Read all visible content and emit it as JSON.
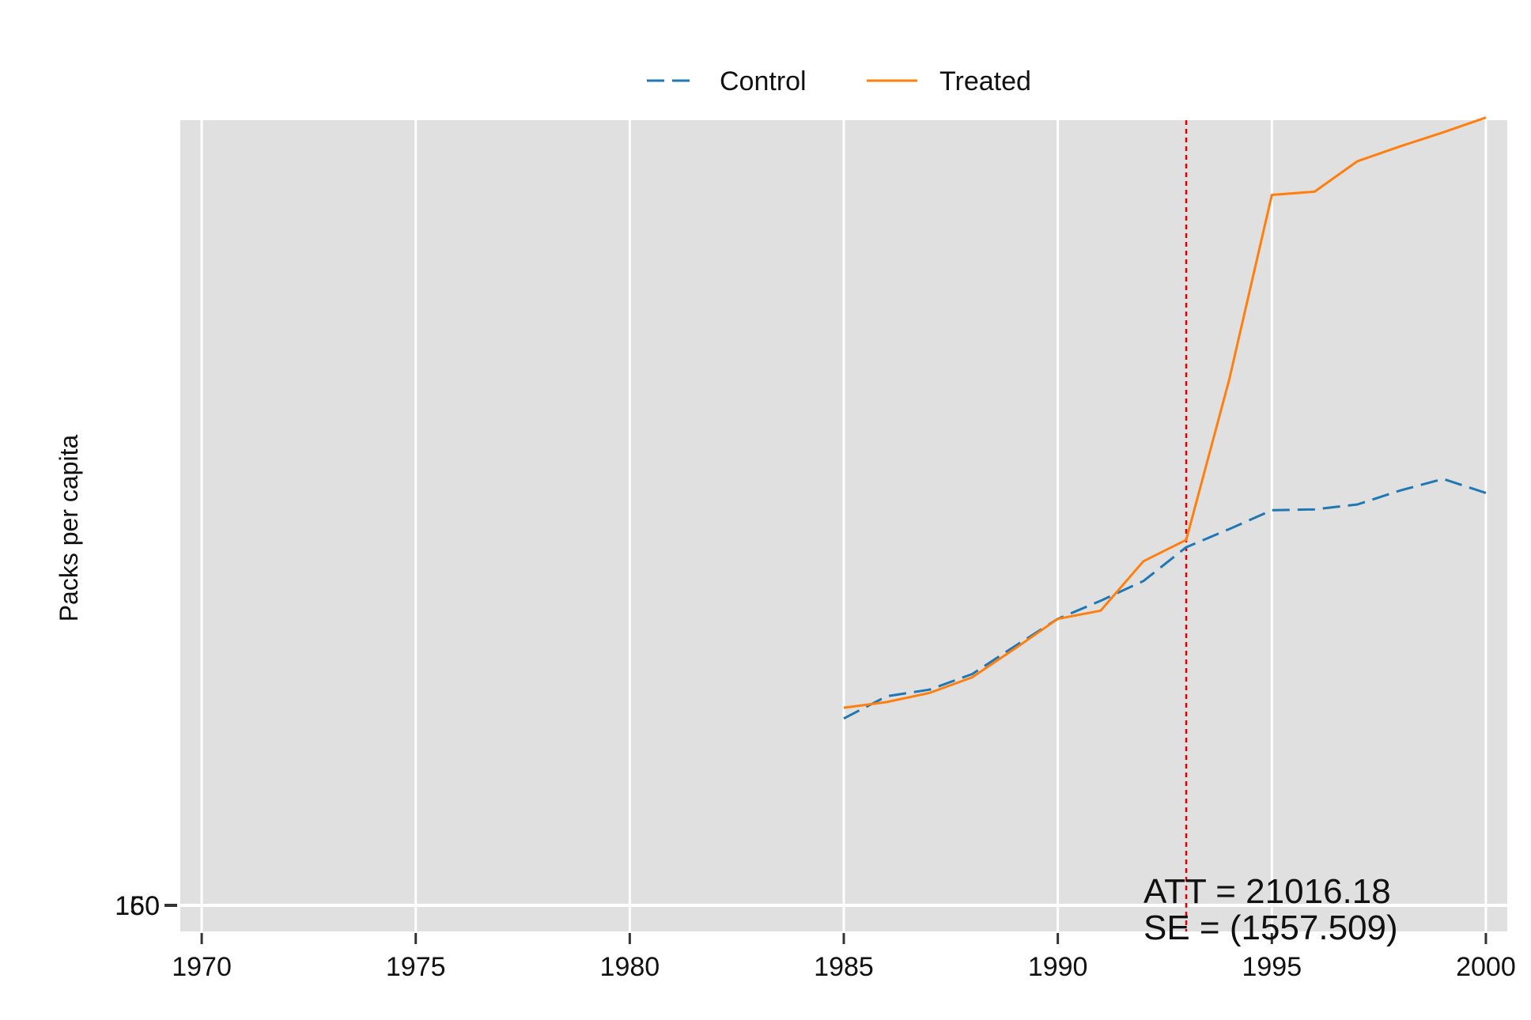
{
  "chart_data": {
    "type": "line",
    "xlabel": "",
    "ylabel": "Packs per capita",
    "xlim": [
      1969.5,
      2000.5
    ],
    "x_ticks": [
      "1970",
      "1975",
      "1980",
      "1985",
      "1990",
      "1995",
      "2000"
    ],
    "y_tick_labels": [
      "150",
      "160"
    ],
    "ylim": [
      12500,
      105000
    ],
    "grid": true,
    "legend_position": "top",
    "treatment_year": 1993,
    "series": [
      {
        "name": "Control",
        "color": "#1f77b4",
        "style": "dashed",
        "x": [
          1985,
          1986,
          1987,
          1988,
          1989,
          1990,
          1991,
          1992,
          1993,
          1994,
          1995,
          1996,
          1997,
          1998,
          1999,
          2000
        ],
        "y": [
          35200,
          37900,
          38700,
          40600,
          44000,
          47300,
          49500,
          51900,
          56000,
          58200,
          60500,
          60600,
          61200,
          62900,
          64300,
          62600
        ]
      },
      {
        "name": "Treated",
        "color": "#ff7f0e",
        "style": "solid",
        "x": [
          1985,
          1986,
          1987,
          1988,
          1989,
          1990,
          1991,
          1992,
          1993,
          1994,
          1995,
          1996,
          1997,
          1998,
          1999,
          2000
        ],
        "y": [
          36500,
          37200,
          38300,
          40200,
          43700,
          47300,
          48300,
          54300,
          56900,
          76300,
          98800,
          99200,
          102900,
          104700,
          106400,
          108200
        ]
      }
    ],
    "annotations": [
      "ATT = 21016.18",
      "SE = (1557.509)"
    ]
  }
}
